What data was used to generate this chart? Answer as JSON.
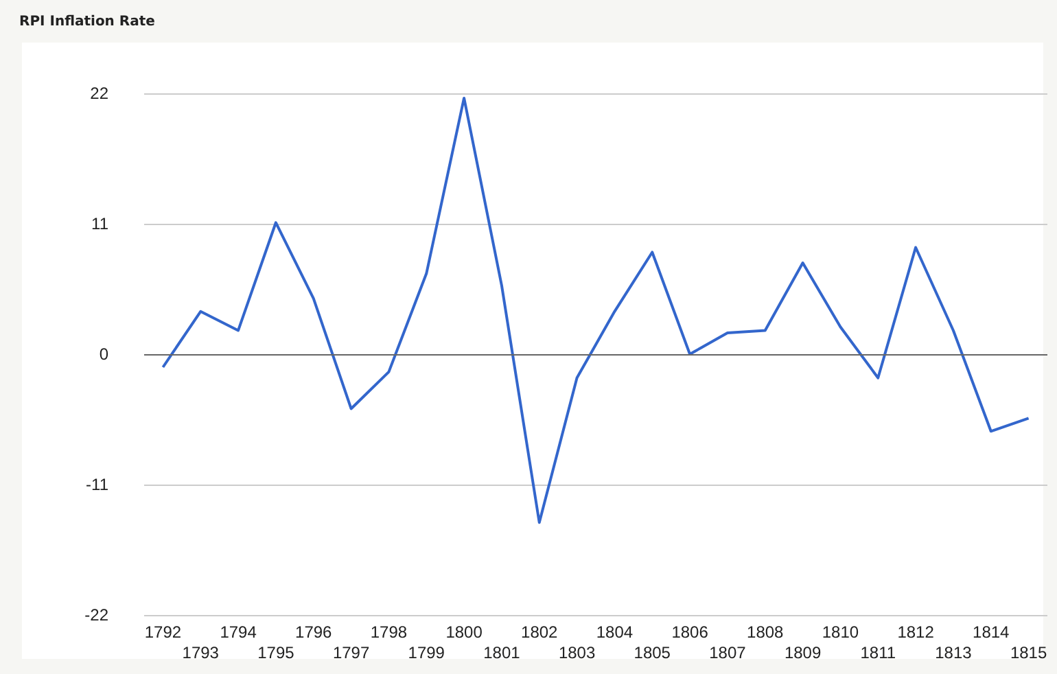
{
  "chart_data": {
    "type": "line",
    "title": "RPI Inflation Rate",
    "categories": [
      "1792",
      "1793",
      "1794",
      "1795",
      "1796",
      "1797",
      "1798",
      "1799",
      "1800",
      "1801",
      "1802",
      "1803",
      "1804",
      "1805",
      "1806",
      "1807",
      "1808",
      "1809",
      "1810",
      "1811",
      "1812",
      "1813",
      "1814",
      "1815"
    ],
    "series": [
      {
        "color": "#3366cc",
        "values": [
          -1.1,
          3.6,
          2.0,
          11.1,
          4.7,
          -4.6,
          -1.5,
          6.8,
          21.6,
          5.8,
          -14.2,
          -2.0,
          3.6,
          8.6,
          0.0,
          1.8,
          2.0,
          7.7,
          2.3,
          -2.0,
          9.0,
          2.0,
          -6.5,
          -5.4
        ]
      }
    ],
    "ylim": [
      -22,
      22
    ],
    "yticks": [
      -22,
      -11,
      0,
      11,
      22
    ],
    "grid": "y",
    "marker": "none",
    "line_style": "solid",
    "ref_lines": [
      {
        "axis": "y",
        "value": 0,
        "color": "#666666"
      }
    ]
  }
}
